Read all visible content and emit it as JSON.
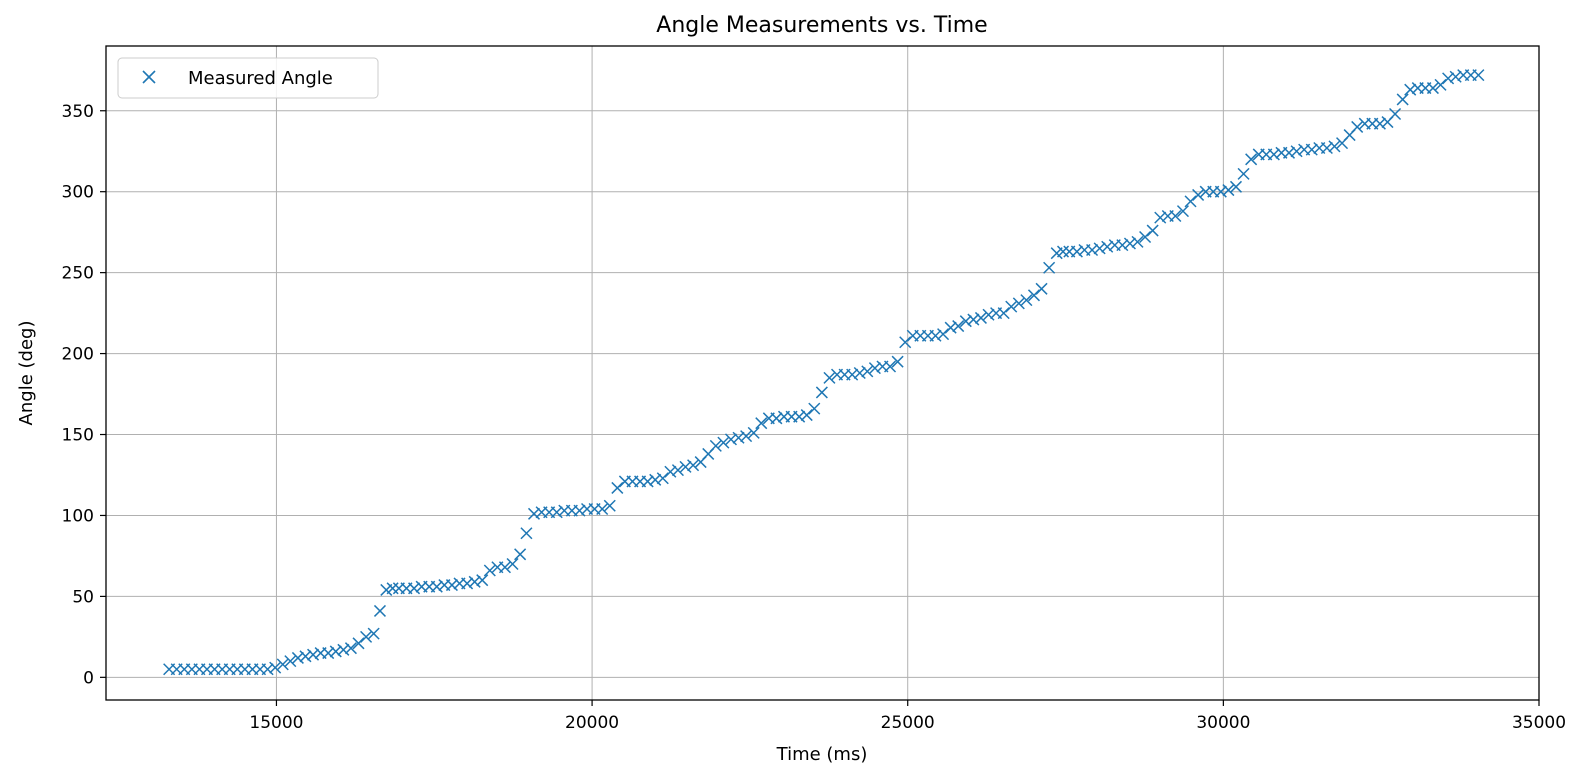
{
  "chart_data": {
    "type": "scatter",
    "title": "Angle Measurements vs. Time",
    "xlabel": "Time (ms)",
    "ylabel": "Angle (deg)",
    "xlim": [
      12300,
      35000
    ],
    "ylim": [
      -14,
      390
    ],
    "xticks": [
      15000,
      20000,
      25000,
      30000,
      35000
    ],
    "yticks": [
      0,
      50,
      100,
      150,
      200,
      250,
      300,
      350
    ],
    "grid": true,
    "legend_position": "top-left",
    "marker": "x",
    "color": "#1f77b4",
    "series": [
      {
        "name": "Measured Angle",
        "x": [
          13300,
          13420,
          13540,
          13660,
          13780,
          13900,
          14020,
          14140,
          14260,
          14380,
          14500,
          14620,
          14740,
          14860,
          14980,
          15100,
          15220,
          15340,
          15460,
          15580,
          15700,
          15820,
          15940,
          16060,
          16180,
          16300,
          16420,
          16540,
          16640,
          16740,
          16840,
          16940,
          17060,
          17180,
          17300,
          17420,
          17540,
          17660,
          17780,
          17900,
          18020,
          18140,
          18260,
          18380,
          18500,
          18620,
          18740,
          18860,
          18960,
          19080,
          19200,
          19320,
          19440,
          19560,
          19680,
          19800,
          19920,
          20040,
          20160,
          20280,
          20400,
          20520,
          20640,
          20760,
          20880,
          21000,
          21120,
          21240,
          21360,
          21480,
          21600,
          21720,
          21840,
          21960,
          22080,
          22200,
          22320,
          22440,
          22560,
          22680,
          22800,
          22920,
          23040,
          23160,
          23280,
          23400,
          23520,
          23640,
          23760,
          23880,
          24000,
          24120,
          24240,
          24360,
          24480,
          24600,
          24720,
          24840,
          24960,
          25080,
          25200,
          25320,
          25440,
          25560,
          25680,
          25800,
          25920,
          26040,
          26160,
          26280,
          26400,
          26520,
          26640,
          26760,
          26880,
          27000,
          27120,
          27240,
          27360,
          27460,
          27560,
          27680,
          27800,
          27920,
          28040,
          28160,
          28280,
          28400,
          28520,
          28640,
          28760,
          28880,
          29000,
          29120,
          29240,
          29360,
          29480,
          29600,
          29720,
          29840,
          29960,
          30080,
          30200,
          30320,
          30440,
          30560,
          30680,
          30800,
          30920,
          31040,
          31160,
          31280,
          31400,
          31520,
          31640,
          31760,
          31880,
          32000,
          32120,
          32240,
          32360,
          32480,
          32600,
          32720,
          32840,
          32960,
          33080,
          33200,
          33320,
          33440,
          33560,
          33680,
          33800,
          33920,
          34040
        ],
        "y": [
          5,
          5,
          5,
          5,
          5,
          5,
          5,
          5,
          5,
          5,
          5,
          5,
          5,
          5,
          6,
          8,
          10,
          12,
          13,
          14,
          15,
          15,
          16,
          17,
          18,
          21,
          25,
          27,
          41,
          54,
          55,
          55,
          55,
          55,
          56,
          56,
          56,
          57,
          57,
          58,
          58,
          59,
          60,
          66,
          68,
          68,
          70,
          76,
          89,
          101,
          102,
          102,
          102,
          103,
          103,
          103,
          104,
          104,
          104,
          106,
          117,
          121,
          121,
          121,
          121,
          122,
          123,
          127,
          128,
          130,
          131,
          133,
          138,
          143,
          145,
          147,
          148,
          149,
          151,
          157,
          160,
          160,
          161,
          161,
          161,
          162,
          166,
          176,
          185,
          187,
          187,
          187,
          188,
          189,
          191,
          192,
          192,
          195,
          207,
          211,
          211,
          211,
          211,
          212,
          216,
          217,
          220,
          221,
          222,
          224,
          225,
          225,
          229,
          231,
          233,
          236,
          240,
          253,
          262,
          263,
          263,
          263,
          264,
          264,
          265,
          266,
          267,
          267,
          268,
          269,
          272,
          276,
          284,
          285,
          285,
          288,
          294,
          298,
          300,
          300,
          300,
          301,
          303,
          311,
          320,
          323,
          323,
          323,
          324,
          324,
          325,
          326,
          326,
          327,
          327,
          328,
          330,
          335,
          340,
          342,
          342,
          342,
          343,
          348,
          357,
          363,
          364,
          364,
          364,
          366,
          370,
          371,
          372,
          372,
          372
        ]
      }
    ]
  }
}
